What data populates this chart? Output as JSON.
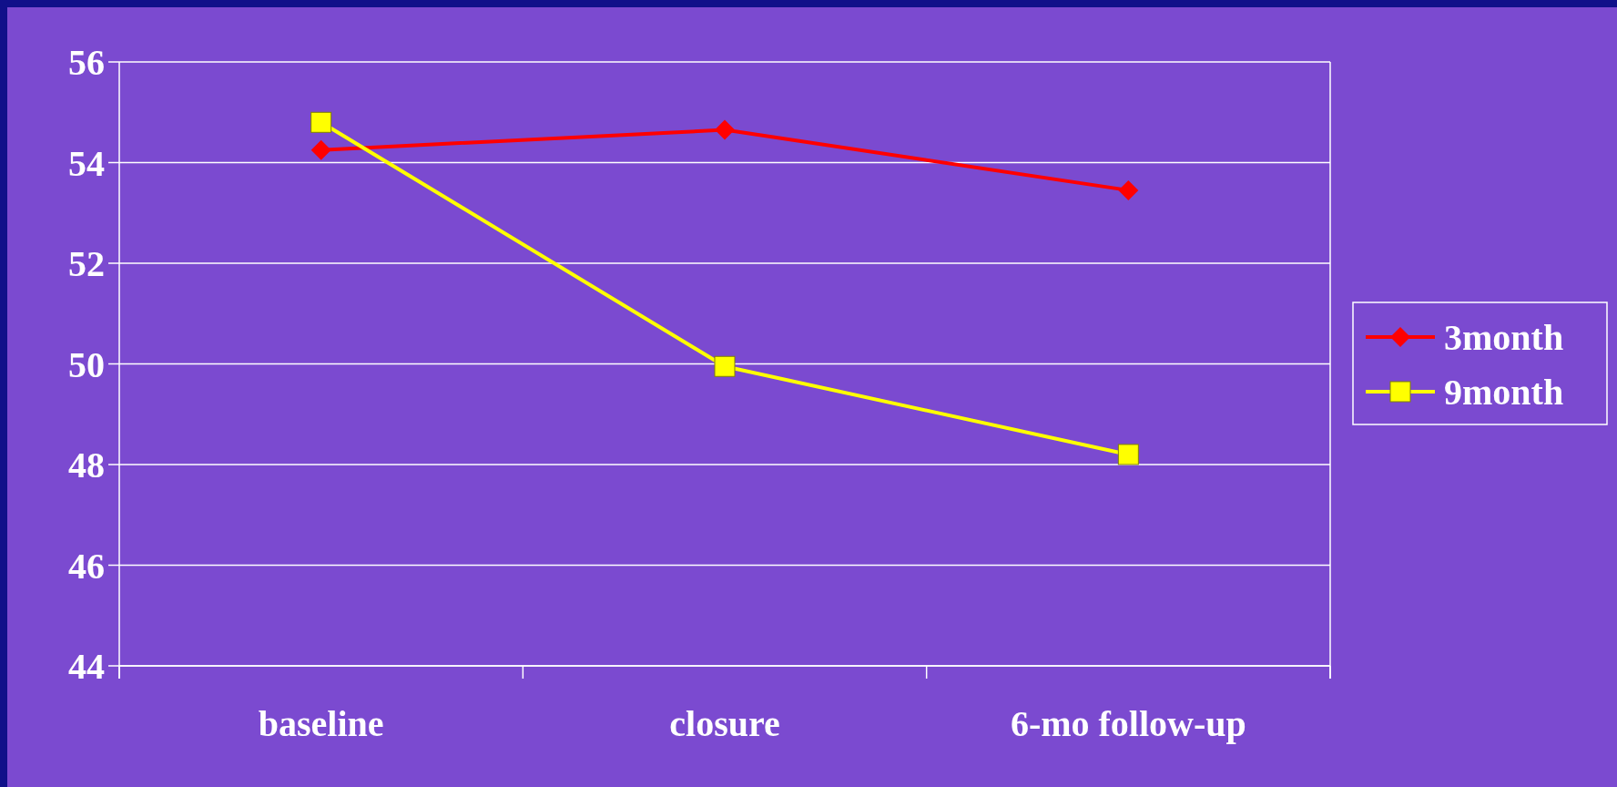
{
  "chart_data": {
    "type": "line",
    "categories": [
      "baseline",
      "closure",
      "6-mo follow-up"
    ],
    "series": [
      {
        "name": "3month",
        "color": "#ff0000",
        "marker": "diamond",
        "values": [
          54.25,
          54.65,
          53.45
        ]
      },
      {
        "name": "9month",
        "color": "#ffff00",
        "marker": "square",
        "values": [
          54.8,
          49.95,
          48.2
        ]
      }
    ],
    "ylim": [
      44,
      56
    ],
    "yticks": [
      44,
      46,
      48,
      50,
      52,
      54,
      56
    ],
    "grid": "y",
    "legend": "right",
    "line_style": "solid"
  }
}
